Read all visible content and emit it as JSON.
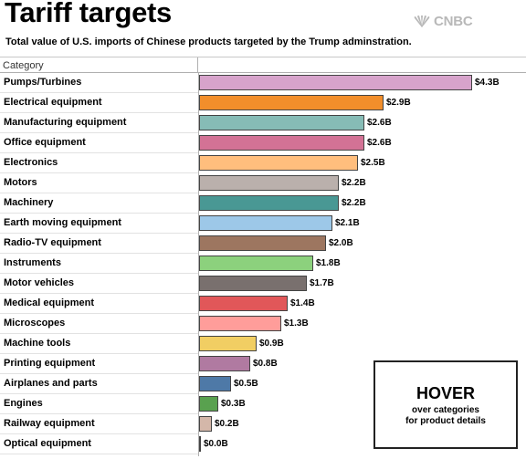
{
  "title": "Tariff targets",
  "subtitle": "Total value of U.S. imports of Chinese products targeted by the Trump adminstration.",
  "brand": {
    "name": "CNBC",
    "icon": "peacock-icon"
  },
  "hover_box": {
    "title": "HOVER",
    "line1": "over categories",
    "line2": "for product details"
  },
  "chart_data": {
    "type": "bar",
    "orientation": "horizontal",
    "category_header": "Category",
    "categories": [
      "Pumps/Turbines",
      "Electrical equipment",
      "Manufacturing equipment",
      "Office equipment",
      "Electronics",
      "Motors",
      "Machinery",
      "Earth moving equipment",
      "Radio-TV equipment",
      "Instruments",
      "Motor vehicles",
      "Medical equipment",
      "Microscopes",
      "Machine tools",
      "Printing equipment",
      "Airplanes and parts",
      "Engines",
      "Railway equipment",
      "Optical equipment"
    ],
    "values": [
      4.3,
      2.9,
      2.6,
      2.6,
      2.5,
      2.2,
      2.2,
      2.1,
      2.0,
      1.8,
      1.7,
      1.4,
      1.3,
      0.9,
      0.8,
      0.5,
      0.3,
      0.2,
      0.0
    ],
    "value_labels": [
      "$4.3B",
      "$2.9B",
      "$2.6B",
      "$2.6B",
      "$2.5B",
      "$2.2B",
      "$2.2B",
      "$2.1B",
      "$2.0B",
      "$1.8B",
      "$1.7B",
      "$1.4B",
      "$1.3B",
      "$0.9B",
      "$0.8B",
      "$0.5B",
      "$0.3B",
      "$0.2B",
      "$0.0B"
    ],
    "colors": [
      "#d7a3cb",
      "#f28e2b",
      "#86bcb6",
      "#d37295",
      "#ffbe7d",
      "#bab0ac",
      "#499894",
      "#9dc8e8",
      "#9d7660",
      "#8cd17d",
      "#79706e",
      "#e15759",
      "#ff9d9a",
      "#f1ce63",
      "#b07aa1",
      "#4e79a7",
      "#59a14f",
      "#d4b7a9",
      "#a0cbe8"
    ],
    "xlim": [
      0,
      4.3
    ],
    "grid": false,
    "legend": "none"
  }
}
